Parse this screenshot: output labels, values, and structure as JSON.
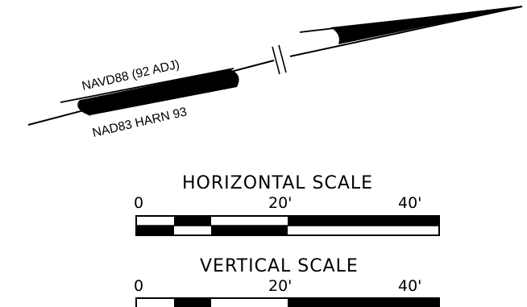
{
  "north_arrow": {
    "upper_label": "NAVD88 (92 ADJ)",
    "lower_label": "NAD83 HARN 93"
  },
  "horizontal_scale": {
    "title": "HORIZONTAL SCALE",
    "tick_labels": [
      "0",
      "20'",
      "40'"
    ]
  },
  "vertical_scale": {
    "title": "VERTICAL SCALE",
    "tick_labels": [
      "0",
      "20'",
      "40'"
    ]
  }
}
